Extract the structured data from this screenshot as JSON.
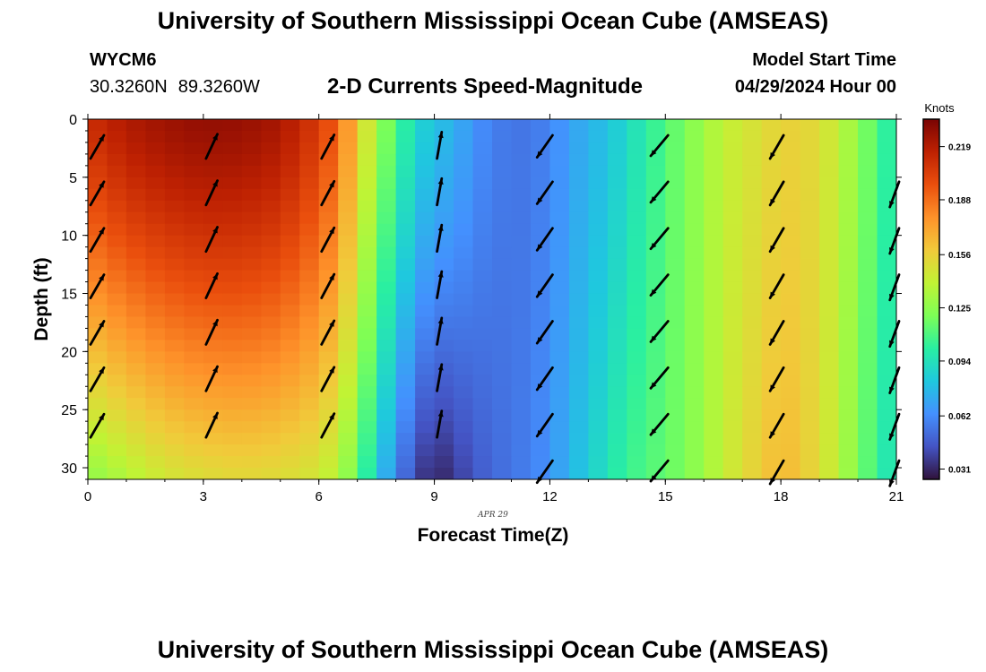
{
  "page_title": "University of Southern Mississippi Ocean Cube (AMSEAS)",
  "footer_title": "University of Southern Mississippi Ocean Cube (AMSEAS)",
  "station": {
    "id": "WYCM6",
    "lat": "30.3260N",
    "lon": "89.3260W"
  },
  "model_start": {
    "label": "Model Start Time",
    "value": "04/29/2024 Hour 00"
  },
  "colors": {
    "cmap": [
      "#30123b",
      "#4454c4",
      "#4490fe",
      "#1fc8de",
      "#29efa2",
      "#7dff56",
      "#c1f334",
      "#f1ca3a",
      "#fe922a",
      "#ea4f0d",
      "#be2102",
      "#7a0403"
    ],
    "arrow": "#000000"
  },
  "chart_data": {
    "type": "heatmap",
    "title": "2-D Currents Speed-Magnitude",
    "xlabel": "Forecast Time(Z)",
    "ylabel": "Depth (ft)",
    "date_annotation": "APR 29",
    "x_ticks": [
      "0",
      "3",
      "6",
      "9",
      "12",
      "15",
      "18",
      "21"
    ],
    "y_ticks": [
      "0",
      "5",
      "10",
      "15",
      "20",
      "25",
      "30"
    ],
    "xlim": [
      0,
      21
    ],
    "ylim": [
      0,
      31
    ],
    "colorbar": {
      "label": "Knots",
      "ticks": [
        "0.219",
        "0.188",
        "0.156",
        "0.125",
        "0.094",
        "0.062",
        "0.031"
      ],
      "range": [
        0.025,
        0.235
      ]
    },
    "speed_profile_surface": {
      "hours": [
        0,
        1,
        2,
        3,
        4,
        5,
        6,
        6.5,
        7,
        7.5,
        8,
        8.5,
        9,
        9.5,
        10,
        10.5,
        11,
        11.5,
        12,
        12.5,
        13,
        13.5,
        14,
        14.5,
        15,
        15.5,
        16,
        16.5,
        17,
        17.5,
        18,
        18.5,
        19,
        19.5,
        20,
        20.5,
        21
      ],
      "speeds": [
        0.21,
        0.22,
        0.225,
        0.228,
        0.227,
        0.222,
        0.205,
        0.19,
        0.16,
        0.13,
        0.11,
        0.09,
        0.08,
        0.075,
        0.065,
        0.058,
        0.055,
        0.055,
        0.06,
        0.068,
        0.075,
        0.08,
        0.09,
        0.1,
        0.11,
        0.12,
        0.13,
        0.14,
        0.145,
        0.15,
        0.155,
        0.155,
        0.15,
        0.14,
        0.125,
        0.11,
        0.095
      ]
    },
    "speed_profile_bottom": {
      "hours": [
        0,
        1,
        2,
        3,
        4,
        5,
        6,
        6.5,
        7,
        7.5,
        8,
        8.5,
        9,
        9.5,
        10,
        10.5,
        11,
        11.5,
        12,
        12.5,
        13,
        13.5,
        14,
        14.5,
        15,
        15.5,
        16,
        16.5,
        17,
        17.5,
        18,
        18.5,
        19,
        19.5,
        20,
        20.5,
        21
      ],
      "speeds": [
        0.125,
        0.135,
        0.145,
        0.15,
        0.152,
        0.15,
        0.145,
        0.135,
        0.115,
        0.085,
        0.06,
        0.04,
        0.03,
        0.035,
        0.045,
        0.05,
        0.055,
        0.058,
        0.065,
        0.075,
        0.085,
        0.095,
        0.105,
        0.11,
        0.115,
        0.12,
        0.13,
        0.14,
        0.15,
        0.158,
        0.165,
        0.16,
        0.15,
        0.138,
        0.12,
        0.105,
        0.09
      ]
    },
    "vectors": [
      {
        "hour": 0,
        "direction_deg": 30,
        "depths": [
          2,
          6,
          10,
          14,
          18,
          22,
          26
        ]
      },
      {
        "hour": 3,
        "direction_deg": 25,
        "depths": [
          2,
          6,
          10,
          14,
          18,
          22,
          26
        ]
      },
      {
        "hour": 6,
        "direction_deg": 28,
        "depths": [
          2,
          6,
          10,
          14,
          18,
          22,
          26
        ]
      },
      {
        "hour": 9,
        "direction_deg": 10,
        "depths": [
          2,
          6,
          10,
          14,
          18,
          22,
          26
        ]
      },
      {
        "hour": 12,
        "direction_deg": 215,
        "depths": [
          0,
          4,
          8,
          12,
          16,
          20,
          24,
          28
        ]
      },
      {
        "hour": 15,
        "direction_deg": 220,
        "depths": [
          0,
          4,
          8,
          12,
          16,
          20,
          24,
          28
        ]
      },
      {
        "hour": 18,
        "direction_deg": 210,
        "depths": [
          0,
          4,
          8,
          12,
          16,
          20,
          24,
          28
        ]
      },
      {
        "hour": 21,
        "direction_deg": 200,
        "depths": [
          4,
          8,
          12,
          16,
          20,
          24,
          28
        ]
      }
    ]
  }
}
